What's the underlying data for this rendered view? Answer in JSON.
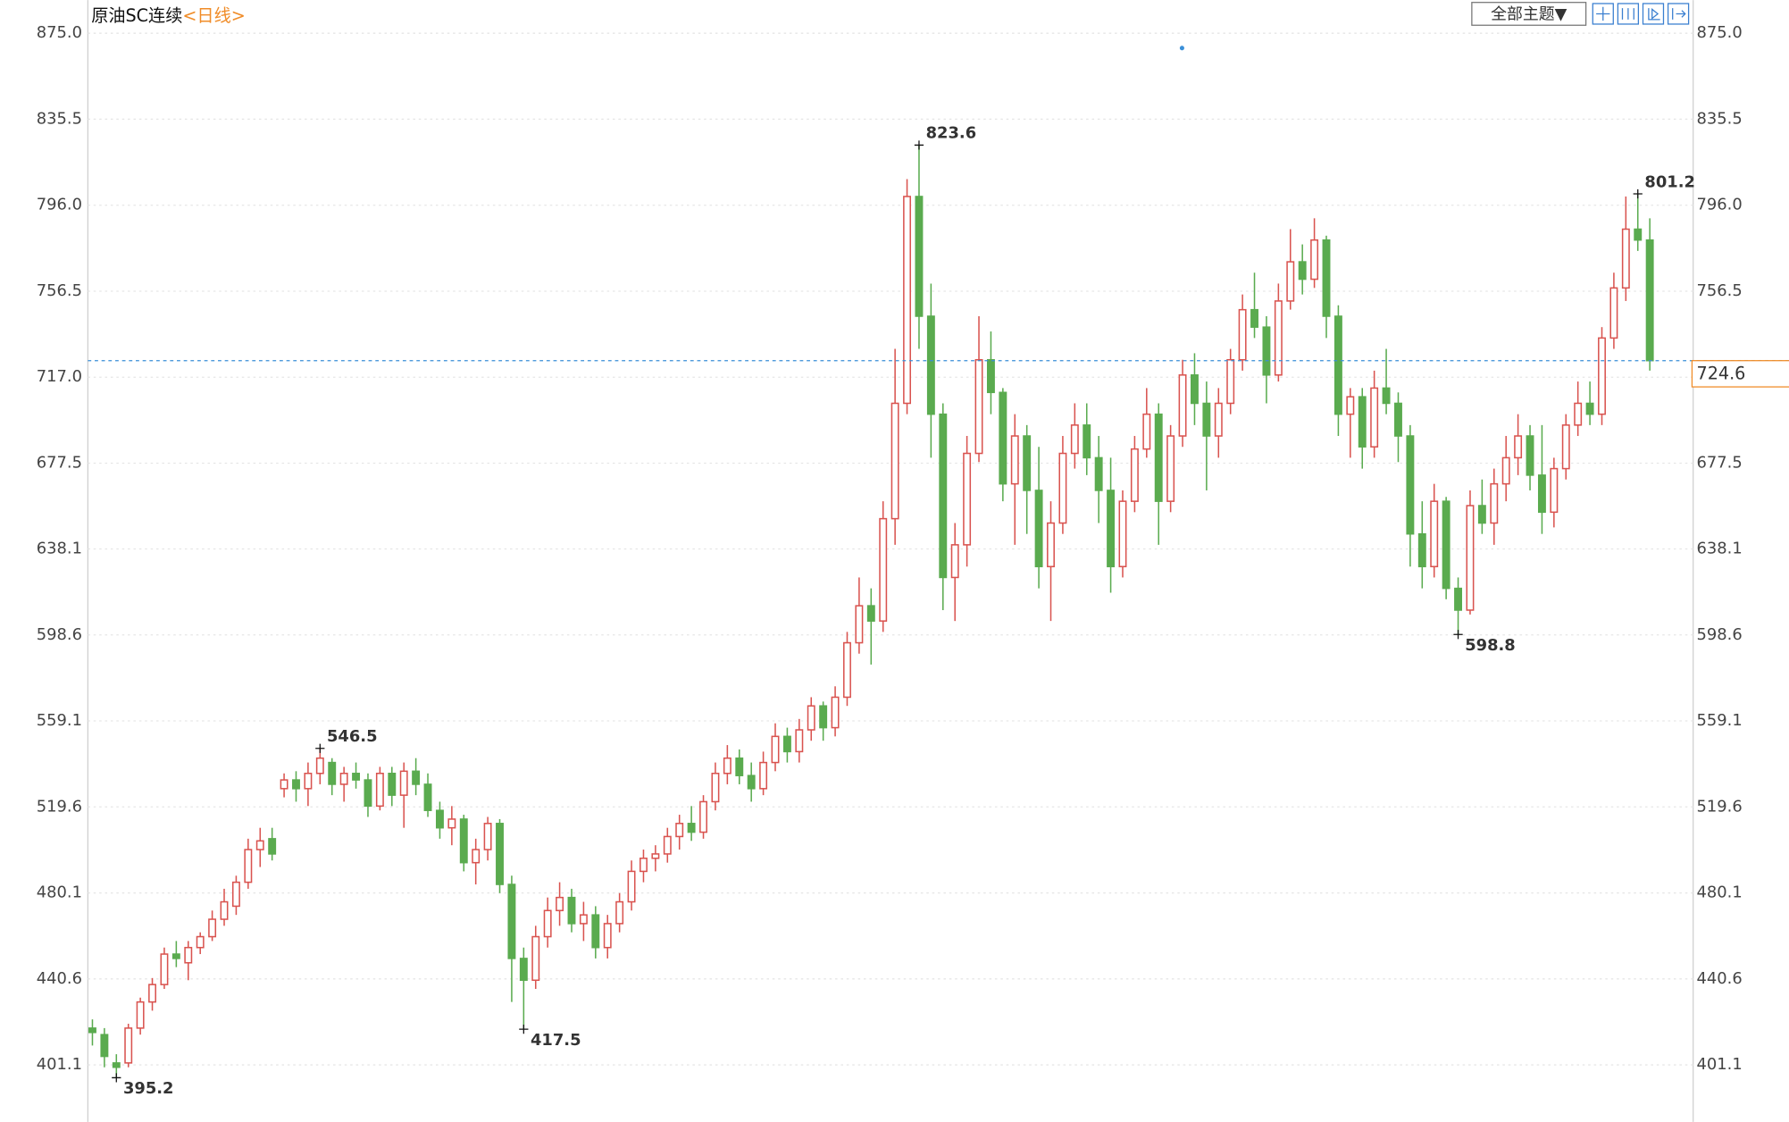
{
  "chart_data": {
    "type": "candlestick",
    "title": "原油SC连续",
    "subtitle": "<日线>",
    "toolbar": {
      "theme_button": "全部主题▼"
    },
    "ylim": [
      376.5,
      890.2
    ],
    "yticks": [
      {
        "value": 401.1,
        "label": "401.1"
      },
      {
        "value": 440.6,
        "label": "440.6"
      },
      {
        "value": 480.1,
        "label": "480.1"
      },
      {
        "value": 519.6,
        "label": "519.6"
      },
      {
        "value": 559.1,
        "label": "559.1"
      },
      {
        "value": 598.6,
        "label": "598.6"
      },
      {
        "value": 638.1,
        "label": "638.1"
      },
      {
        "value": 677.5,
        "label": "677.5"
      },
      {
        "value": 717.0,
        "label": "717.0"
      },
      {
        "value": 756.5,
        "label": "756.5"
      },
      {
        "value": 796.0,
        "label": "796.0"
      },
      {
        "value": 835.5,
        "label": "835.5"
      },
      {
        "value": 875.0,
        "label": "875.0"
      }
    ],
    "grid": true,
    "up_color": "#d9534f",
    "down_color": "#5aab4f",
    "price_line_color": "#3a8fd8",
    "price_label_color": "#f08c28",
    "extremes": [
      395.2,
      546.5,
      417.5,
      823.6,
      598.8,
      801.2
    ],
    "ohlc": [
      [
        418,
        422,
        410,
        416
      ],
      [
        415,
        418,
        400,
        405
      ],
      [
        402,
        406,
        395.2,
        400
      ],
      [
        402,
        420,
        400,
        418
      ],
      [
        418,
        432,
        415,
        430
      ],
      [
        430,
        441,
        426,
        438
      ],
      [
        438,
        455,
        436,
        452
      ],
      [
        452,
        458,
        446,
        450
      ],
      [
        448,
        458,
        440,
        455
      ],
      [
        455,
        462,
        452,
        460
      ],
      [
        460,
        472,
        458,
        468
      ],
      [
        468,
        482,
        465,
        476
      ],
      [
        474,
        488,
        470,
        485
      ],
      [
        485,
        505,
        482,
        500
      ],
      [
        500,
        510,
        492,
        504
      ],
      [
        505,
        510,
        495,
        498
      ],
      [
        528,
        535,
        524,
        532
      ],
      [
        532,
        536,
        522,
        528
      ],
      [
        528,
        540,
        520,
        535
      ],
      [
        535,
        546.5,
        530,
        542
      ],
      [
        540,
        542,
        525,
        530
      ],
      [
        530,
        538,
        522,
        535
      ],
      [
        535,
        540,
        528,
        532
      ],
      [
        532,
        535,
        515,
        520
      ],
      [
        520,
        538,
        518,
        535
      ],
      [
        535,
        538,
        520,
        525
      ],
      [
        525,
        540,
        510,
        536
      ],
      [
        536,
        542,
        525,
        530
      ],
      [
        530,
        535,
        515,
        518
      ],
      [
        518,
        522,
        505,
        510
      ],
      [
        510,
        520,
        502,
        514
      ],
      [
        514,
        516,
        490,
        494
      ],
      [
        494,
        505,
        484,
        500
      ],
      [
        500,
        515,
        495,
        512
      ],
      [
        512,
        514,
        480,
        484
      ],
      [
        484,
        488,
        430,
        450
      ],
      [
        450,
        455,
        417.5,
        440
      ],
      [
        440,
        465,
        436,
        460
      ],
      [
        460,
        478,
        455,
        472
      ],
      [
        472,
        485,
        465,
        478
      ],
      [
        478,
        482,
        462,
        466
      ],
      [
        466,
        476,
        458,
        470
      ],
      [
        470,
        474,
        450,
        455
      ],
      [
        455,
        470,
        450,
        466
      ],
      [
        466,
        480,
        462,
        476
      ],
      [
        476,
        495,
        472,
        490
      ],
      [
        490,
        500,
        485,
        496
      ],
      [
        496,
        502,
        490,
        498
      ],
      [
        498,
        510,
        494,
        506
      ],
      [
        506,
        516,
        500,
        512
      ],
      [
        512,
        520,
        504,
        508
      ],
      [
        508,
        525,
        505,
        522
      ],
      [
        522,
        540,
        518,
        535
      ],
      [
        535,
        548,
        530,
        542
      ],
      [
        542,
        546,
        530,
        534
      ],
      [
        534,
        540,
        522,
        528
      ],
      [
        528,
        545,
        525,
        540
      ],
      [
        540,
        558,
        536,
        552
      ],
      [
        552,
        556,
        540,
        545
      ],
      [
        545,
        560,
        540,
        555
      ],
      [
        555,
        570,
        550,
        566
      ],
      [
        566,
        568,
        550,
        556
      ],
      [
        556,
        575,
        552,
        570
      ],
      [
        570,
        600,
        566,
        595
      ],
      [
        595,
        625,
        590,
        612
      ],
      [
        612,
        620,
        585,
        605
      ],
      [
        605,
        660,
        600,
        652
      ],
      [
        652,
        730,
        640,
        705
      ],
      [
        705,
        808,
        700,
        800
      ],
      [
        800,
        823.6,
        730,
        745
      ],
      [
        745,
        760,
        680,
        700
      ],
      [
        700,
        705,
        610,
        625
      ],
      [
        625,
        650,
        605,
        640
      ],
      [
        640,
        690,
        630,
        682
      ],
      [
        682,
        745,
        678,
        725
      ],
      [
        725,
        738,
        700,
        710
      ],
      [
        710,
        712,
        660,
        668
      ],
      [
        668,
        700,
        640,
        690
      ],
      [
        690,
        695,
        645,
        665
      ],
      [
        665,
        685,
        620,
        630
      ],
      [
        630,
        660,
        605,
        650
      ],
      [
        650,
        690,
        645,
        682
      ],
      [
        682,
        705,
        675,
        695
      ],
      [
        695,
        705,
        672,
        680
      ],
      [
        680,
        690,
        650,
        665
      ],
      [
        665,
        680,
        618,
        630
      ],
      [
        630,
        665,
        625,
        660
      ],
      [
        660,
        690,
        655,
        684
      ],
      [
        684,
        712,
        680,
        700
      ],
      [
        700,
        705,
        640,
        660
      ],
      [
        660,
        695,
        655,
        690
      ],
      [
        690,
        725,
        685,
        718
      ],
      [
        718,
        728,
        695,
        705
      ],
      [
        705,
        715,
        665,
        690
      ],
      [
        690,
        712,
        680,
        705
      ],
      [
        705,
        730,
        700,
        725
      ],
      [
        725,
        755,
        720,
        748
      ],
      [
        748,
        765,
        735,
        740
      ],
      [
        740,
        745,
        705,
        718
      ],
      [
        718,
        760,
        715,
        752
      ],
      [
        752,
        785,
        748,
        770
      ],
      [
        770,
        778,
        755,
        762
      ],
      [
        762,
        790,
        758,
        780
      ],
      [
        780,
        782,
        735,
        745
      ],
      [
        745,
        750,
        690,
        700
      ],
      [
        700,
        712,
        680,
        708
      ],
      [
        708,
        712,
        675,
        685
      ],
      [
        685,
        720,
        680,
        712
      ],
      [
        712,
        730,
        700,
        705
      ],
      [
        705,
        710,
        678,
        690
      ],
      [
        690,
        695,
        630,
        645
      ],
      [
        645,
        660,
        620,
        630
      ],
      [
        630,
        668,
        625,
        660
      ],
      [
        660,
        662,
        615,
        620
      ],
      [
        620,
        625,
        598.8,
        610
      ],
      [
        610,
        665,
        608,
        658
      ],
      [
        658,
        670,
        645,
        650
      ],
      [
        650,
        675,
        640,
        668
      ],
      [
        668,
        690,
        660,
        680
      ],
      [
        680,
        700,
        672,
        690
      ],
      [
        690,
        695,
        665,
        672
      ],
      [
        672,
        695,
        645,
        655
      ],
      [
        655,
        680,
        648,
        675
      ],
      [
        675,
        700,
        670,
        695
      ],
      [
        695,
        715,
        690,
        705
      ],
      [
        705,
        715,
        695,
        700
      ],
      [
        700,
        740,
        695,
        735
      ],
      [
        735,
        765,
        730,
        758
      ],
      [
        758,
        800,
        752,
        785
      ],
      [
        785,
        801.2,
        775,
        780
      ],
      [
        780,
        790,
        720,
        724.6
      ]
    ]
  }
}
